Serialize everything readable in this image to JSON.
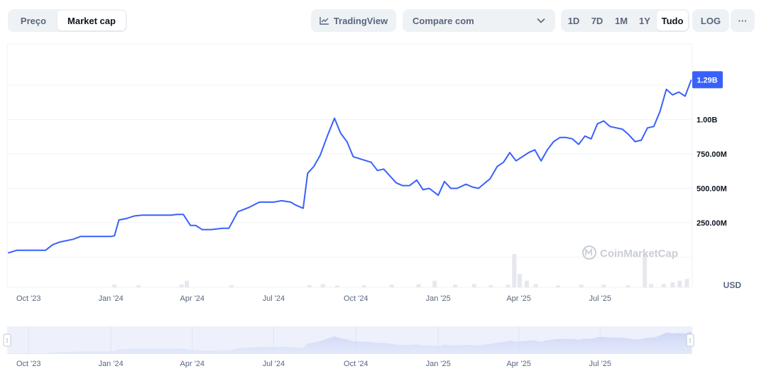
{
  "toolbar": {
    "tabs": [
      "Preço",
      "Market cap"
    ],
    "active_tab": "Market cap",
    "tradingview_label": "TradingView",
    "compare_label": "Compare com",
    "ranges": [
      "1D",
      "7D",
      "1M",
      "1Y",
      "Tudo"
    ],
    "active_range": "Tudo",
    "log_label": "LOG",
    "more_label": "···"
  },
  "colors": {
    "line": "#3861fb",
    "area": "#3861fb",
    "grid": "#eff2f5",
    "badge": "#3861fb",
    "volume": "#e6e8ee"
  },
  "watermark": "CoinMarketCap",
  "chart_data": {
    "type": "line",
    "series": [
      {
        "values": [
          [
            "2023-09-08",
            0.03
          ],
          [
            "2023-09-18",
            0.05
          ],
          [
            "2023-10-20",
            0.05
          ],
          [
            "2023-10-28",
            0.09
          ],
          [
            "2023-11-05",
            0.11
          ],
          [
            "2023-11-20",
            0.13
          ],
          [
            "2023-11-28",
            0.15
          ],
          [
            "2024-01-01",
            0.15
          ],
          [
            "2024-01-05",
            0.155
          ],
          [
            "2024-01-10",
            0.27
          ],
          [
            "2024-01-18",
            0.28
          ],
          [
            "2024-01-28",
            0.3
          ],
          [
            "2024-02-05",
            0.305
          ],
          [
            "2024-03-08",
            0.305
          ],
          [
            "2024-03-15",
            0.31
          ],
          [
            "2024-03-22",
            0.31
          ],
          [
            "2024-03-30",
            0.23
          ],
          [
            "2024-04-05",
            0.23
          ],
          [
            "2024-04-12",
            0.2
          ],
          [
            "2024-04-22",
            0.2
          ],
          [
            "2024-05-05",
            0.21
          ],
          [
            "2024-05-12",
            0.21
          ],
          [
            "2024-05-22",
            0.33
          ],
          [
            "2024-06-03",
            0.36
          ],
          [
            "2024-06-15",
            0.4
          ],
          [
            "2024-07-01",
            0.4
          ],
          [
            "2024-07-10",
            0.41
          ],
          [
            "2024-07-20",
            0.4
          ],
          [
            "2024-07-25",
            0.38
          ],
          [
            "2024-08-03",
            0.355
          ],
          [
            "2024-08-08",
            0.61
          ],
          [
            "2024-08-15",
            0.66
          ],
          [
            "2024-08-22",
            0.74
          ],
          [
            "2024-08-30",
            0.88
          ],
          [
            "2024-09-07",
            1.01
          ],
          [
            "2024-09-14",
            0.9
          ],
          [
            "2024-09-21",
            0.84
          ],
          [
            "2024-09-28",
            0.73
          ],
          [
            "2024-10-08",
            0.71
          ],
          [
            "2024-10-18",
            0.69
          ],
          [
            "2024-10-25",
            0.63
          ],
          [
            "2024-11-01",
            0.64
          ],
          [
            "2024-11-08",
            0.59
          ],
          [
            "2024-11-15",
            0.54
          ],
          [
            "2024-11-22",
            0.52
          ],
          [
            "2024-11-30",
            0.52
          ],
          [
            "2024-12-08",
            0.56
          ],
          [
            "2024-12-15",
            0.49
          ],
          [
            "2024-12-22",
            0.5
          ],
          [
            "2025-01-01",
            0.45
          ],
          [
            "2025-01-08",
            0.55
          ],
          [
            "2025-01-15",
            0.5
          ],
          [
            "2025-01-22",
            0.5
          ],
          [
            "2025-02-01",
            0.53
          ],
          [
            "2025-02-08",
            0.51
          ],
          [
            "2025-02-15",
            0.5
          ],
          [
            "2025-02-28",
            0.57
          ],
          [
            "2025-03-08",
            0.66
          ],
          [
            "2025-03-15",
            0.69
          ],
          [
            "2025-03-22",
            0.76
          ],
          [
            "2025-03-29",
            0.7
          ],
          [
            "2025-04-05",
            0.73
          ],
          [
            "2025-04-12",
            0.76
          ],
          [
            "2025-04-19",
            0.78
          ],
          [
            "2025-04-26",
            0.7
          ],
          [
            "2025-05-03",
            0.78
          ],
          [
            "2025-05-10",
            0.84
          ],
          [
            "2025-05-17",
            0.87
          ],
          [
            "2025-05-24",
            0.87
          ],
          [
            "2025-05-31",
            0.86
          ],
          [
            "2025-06-07",
            0.82
          ],
          [
            "2025-06-14",
            0.88
          ],
          [
            "2025-06-21",
            0.86
          ],
          [
            "2025-06-28",
            0.97
          ],
          [
            "2025-07-05",
            0.99
          ],
          [
            "2025-07-12",
            0.95
          ],
          [
            "2025-07-19",
            0.94
          ],
          [
            "2025-07-26",
            0.93
          ],
          [
            "2025-08-02",
            0.89
          ],
          [
            "2025-08-09",
            0.84
          ],
          [
            "2025-08-16",
            0.85
          ],
          [
            "2025-08-23",
            0.94
          ],
          [
            "2025-08-30",
            0.95
          ],
          [
            "2025-09-06",
            1.06
          ],
          [
            "2025-09-13",
            1.22
          ],
          [
            "2025-09-20",
            1.18
          ],
          [
            "2025-09-27",
            1.2
          ],
          [
            "2025-10-04",
            1.17
          ],
          [
            "2025-10-11",
            1.29
          ]
        ]
      }
    ],
    "x_ticks": [
      "Oct '23",
      "Jan '24",
      "Apr '24",
      "Jul '24",
      "Oct '24",
      "Jan '25",
      "Apr '25",
      "Jul '25"
    ],
    "x_tick_dates": [
      "2023-10-01",
      "2024-01-01",
      "2024-04-01",
      "2024-07-01",
      "2024-10-01",
      "2025-01-01",
      "2025-04-01",
      "2025-07-01"
    ],
    "y_ticks": [
      "250.00M",
      "500.00M",
      "750.00M",
      "1.00B"
    ],
    "y_tick_values": [
      0.25,
      0.5,
      0.75,
      1.0
    ],
    "y_unit": "USD",
    "last_value_label": "1.29B",
    "ylim": [
      -0.22,
      1.55
    ],
    "xlim": [
      "2023-09-07",
      "2025-10-12"
    ],
    "grid": true,
    "volume": [
      [
        "2024-01-05",
        0.08
      ],
      [
        "2024-02-01",
        0.06
      ],
      [
        "2024-03-20",
        0.09
      ],
      [
        "2024-03-26",
        0.2
      ],
      [
        "2024-05-15",
        0.06
      ],
      [
        "2024-08-10",
        0.07
      ],
      [
        "2024-08-25",
        0.1
      ],
      [
        "2024-09-10",
        0.06
      ],
      [
        "2024-10-10",
        0.06
      ],
      [
        "2024-11-10",
        0.08
      ],
      [
        "2024-12-10",
        0.1
      ],
      [
        "2024-12-28",
        0.2
      ],
      [
        "2025-01-20",
        0.08
      ],
      [
        "2025-02-10",
        0.1
      ],
      [
        "2025-03-01",
        0.06
      ],
      [
        "2025-03-20",
        0.08
      ],
      [
        "2025-03-27",
        1.0
      ],
      [
        "2025-04-02",
        0.4
      ],
      [
        "2025-04-10",
        0.2
      ],
      [
        "2025-04-20",
        0.1
      ],
      [
        "2025-05-15",
        0.06
      ],
      [
        "2025-06-10",
        0.08
      ],
      [
        "2025-07-05",
        0.08
      ],
      [
        "2025-08-01",
        0.06
      ],
      [
        "2025-08-20",
        1.0
      ],
      [
        "2025-08-27",
        0.1
      ],
      [
        "2025-09-10",
        0.1
      ],
      [
        "2025-09-20",
        0.15
      ],
      [
        "2025-09-28",
        0.2
      ],
      [
        "2025-10-06",
        0.25
      ]
    ],
    "navigator": {
      "x_ticks": [
        "Oct '23",
        "Jan '24",
        "Apr '24",
        "Jul '24",
        "Oct '24",
        "Jan '25",
        "Apr '25",
        "Jul '25"
      ]
    }
  }
}
